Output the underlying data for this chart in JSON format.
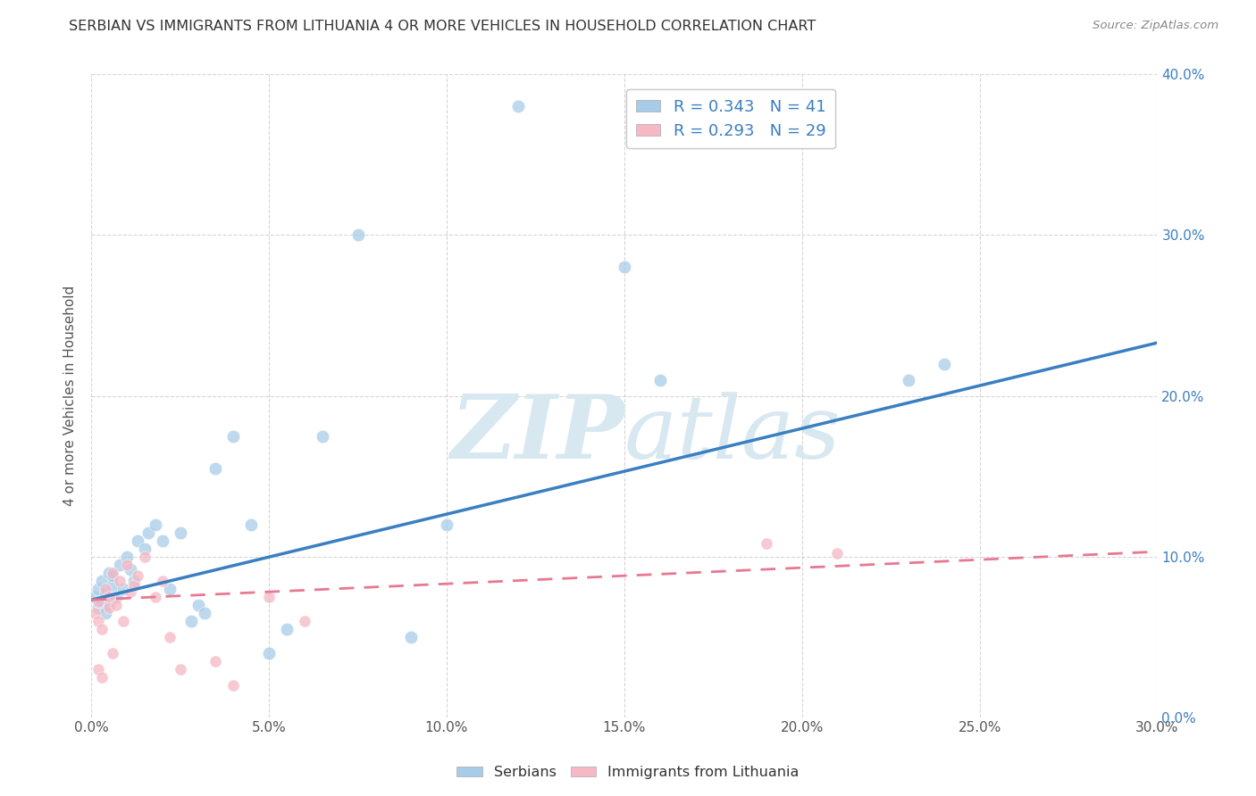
{
  "title": "SERBIAN VS IMMIGRANTS FROM LITHUANIA 4 OR MORE VEHICLES IN HOUSEHOLD CORRELATION CHART",
  "source": "Source: ZipAtlas.com",
  "ylabel": "4 or more Vehicles in Household",
  "x_min": 0.0,
  "x_max": 0.3,
  "y_min": 0.0,
  "y_max": 0.4,
  "x_ticks": [
    0.0,
    0.05,
    0.1,
    0.15,
    0.2,
    0.25,
    0.3
  ],
  "y_ticks": [
    0.0,
    0.1,
    0.2,
    0.3,
    0.4
  ],
  "x_tick_labels": [
    "0.0%",
    "5.0%",
    "10.0%",
    "15.0%",
    "20.0%",
    "25.0%",
    "30.0%"
  ],
  "y_tick_labels_right": [
    "0.0%",
    "10.0%",
    "20.0%",
    "30.0%",
    "40.0%"
  ],
  "blue_R": 0.343,
  "blue_N": 41,
  "pink_R": 0.293,
  "pink_N": 29,
  "serbian_x": [
    0.001,
    0.002,
    0.002,
    0.003,
    0.003,
    0.004,
    0.004,
    0.005,
    0.005,
    0.006,
    0.006,
    0.007,
    0.008,
    0.009,
    0.01,
    0.011,
    0.012,
    0.013,
    0.015,
    0.016,
    0.018,
    0.02,
    0.022,
    0.025,
    0.028,
    0.03,
    0.032,
    0.035,
    0.04,
    0.045,
    0.05,
    0.055,
    0.065,
    0.075,
    0.09,
    0.1,
    0.12,
    0.15,
    0.16,
    0.23,
    0.24
  ],
  "serbian_y": [
    0.075,
    0.08,
    0.068,
    0.072,
    0.085,
    0.078,
    0.065,
    0.09,
    0.07,
    0.082,
    0.088,
    0.075,
    0.095,
    0.08,
    0.1,
    0.092,
    0.085,
    0.11,
    0.105,
    0.115,
    0.12,
    0.11,
    0.08,
    0.115,
    0.06,
    0.07,
    0.065,
    0.155,
    0.175,
    0.12,
    0.04,
    0.055,
    0.175,
    0.3,
    0.05,
    0.12,
    0.38,
    0.28,
    0.21,
    0.21,
    0.22
  ],
  "lithuania_x": [
    0.001,
    0.002,
    0.002,
    0.003,
    0.004,
    0.005,
    0.005,
    0.006,
    0.007,
    0.008,
    0.009,
    0.01,
    0.011,
    0.012,
    0.013,
    0.015,
    0.018,
    0.02,
    0.022,
    0.025,
    0.035,
    0.04,
    0.05,
    0.06,
    0.19,
    0.21,
    0.002,
    0.003,
    0.006
  ],
  "lithuania_y": [
    0.065,
    0.072,
    0.06,
    0.055,
    0.08,
    0.075,
    0.068,
    0.09,
    0.07,
    0.085,
    0.06,
    0.095,
    0.078,
    0.082,
    0.088,
    0.1,
    0.075,
    0.085,
    0.05,
    0.03,
    0.035,
    0.02,
    0.075,
    0.06,
    0.108,
    0.102,
    0.03,
    0.025,
    0.04
  ],
  "blue_line_start_y": 0.073,
  "blue_line_end_y": 0.233,
  "pink_line_start_y": 0.073,
  "pink_line_end_y": 0.103,
  "blue_scatter_color": "#a8cce8",
  "pink_scatter_color": "#f5b8c4",
  "blue_line_color": "#3a7fc1",
  "pink_line_color": "#e87890",
  "watermark_color": "#d8e8f0",
  "background_color": "#ffffff",
  "grid_color": "#cccccc"
}
